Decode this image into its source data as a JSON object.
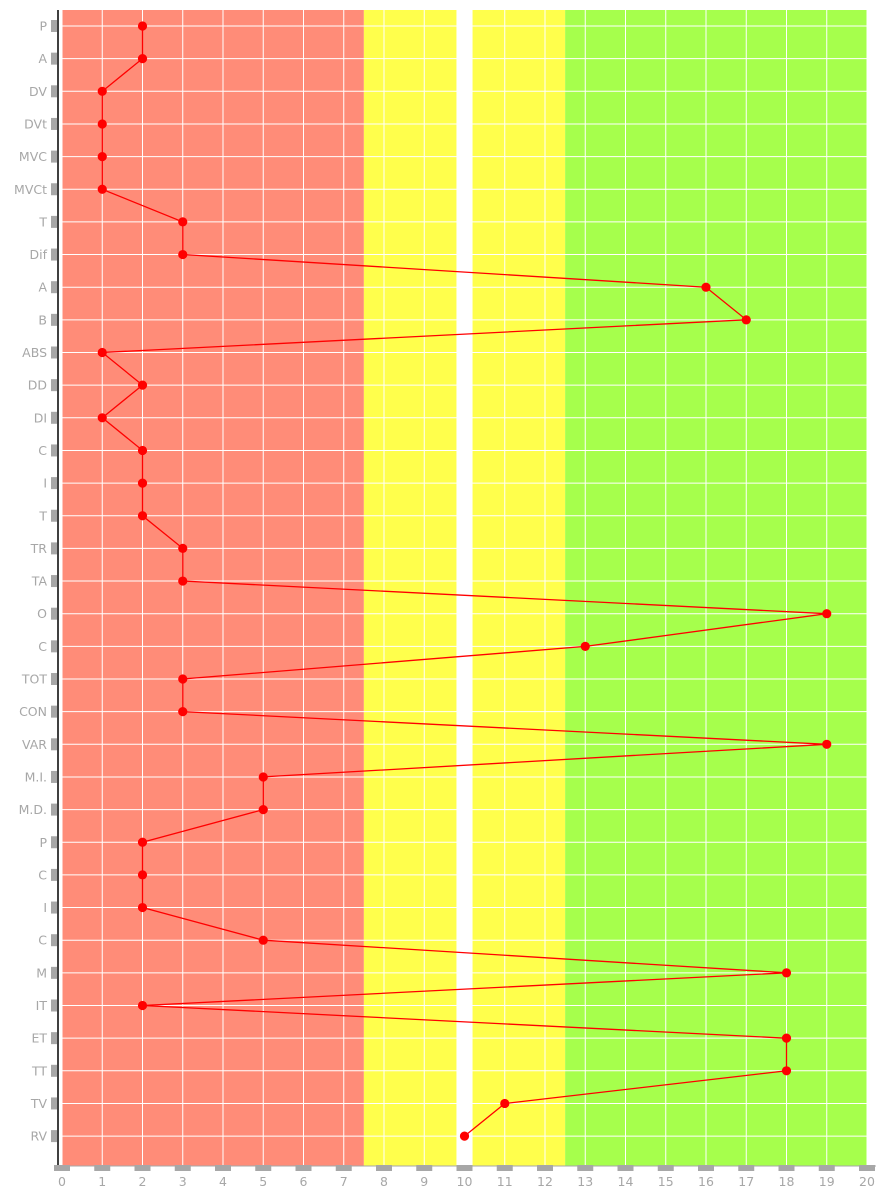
{
  "chart_data": {
    "type": "line",
    "orientation": "horizontal-values",
    "title": "",
    "xlabel": "",
    "ylabel": "",
    "xlim": [
      0,
      20
    ],
    "x_ticks": [
      0,
      1,
      2,
      3,
      4,
      5,
      6,
      7,
      8,
      9,
      10,
      11,
      12,
      13,
      14,
      15,
      16,
      17,
      18,
      19,
      20
    ],
    "grid": true,
    "legend": "none",
    "categories": [
      "P",
      "A",
      "DV",
      "DVt",
      "MVC",
      "MVCt",
      "T",
      "Dif",
      "A",
      "B",
      "ABS",
      "DD",
      "DI",
      "C",
      "I",
      "T",
      "TR",
      "TA",
      "O",
      "C",
      "TOT",
      "CON",
      "VAR",
      "M.I.",
      "M.D.",
      "P",
      "C",
      "I",
      "C",
      "M",
      "IT",
      "ET",
      "TT",
      "TV",
      "RV"
    ],
    "series": [
      {
        "values": [
          2,
          2,
          1,
          1,
          1,
          1,
          3,
          3,
          16,
          17,
          1,
          2,
          1,
          2,
          2,
          2,
          3,
          3,
          19,
          13,
          3,
          3,
          19,
          5,
          5,
          2,
          2,
          2,
          5,
          18,
          2,
          18,
          18,
          11,
          10
        ]
      }
    ],
    "bands": [
      {
        "from": 0,
        "to": 7.5,
        "color": "#ff8c78"
      },
      {
        "from": 7.5,
        "to": 9.8,
        "color": "#ffff4c"
      },
      {
        "from": 10.2,
        "to": 12.5,
        "color": "#ffff4c"
      },
      {
        "from": 12.5,
        "to": 20,
        "color": "#a6ff4c"
      }
    ],
    "colors": {
      "line": "#ff0000",
      "marker": "#ff0000",
      "grid": "#ffffff",
      "axis": "#000000",
      "tick_mark": "#a7a7a7",
      "tick_text": "#a7a7a7"
    }
  }
}
